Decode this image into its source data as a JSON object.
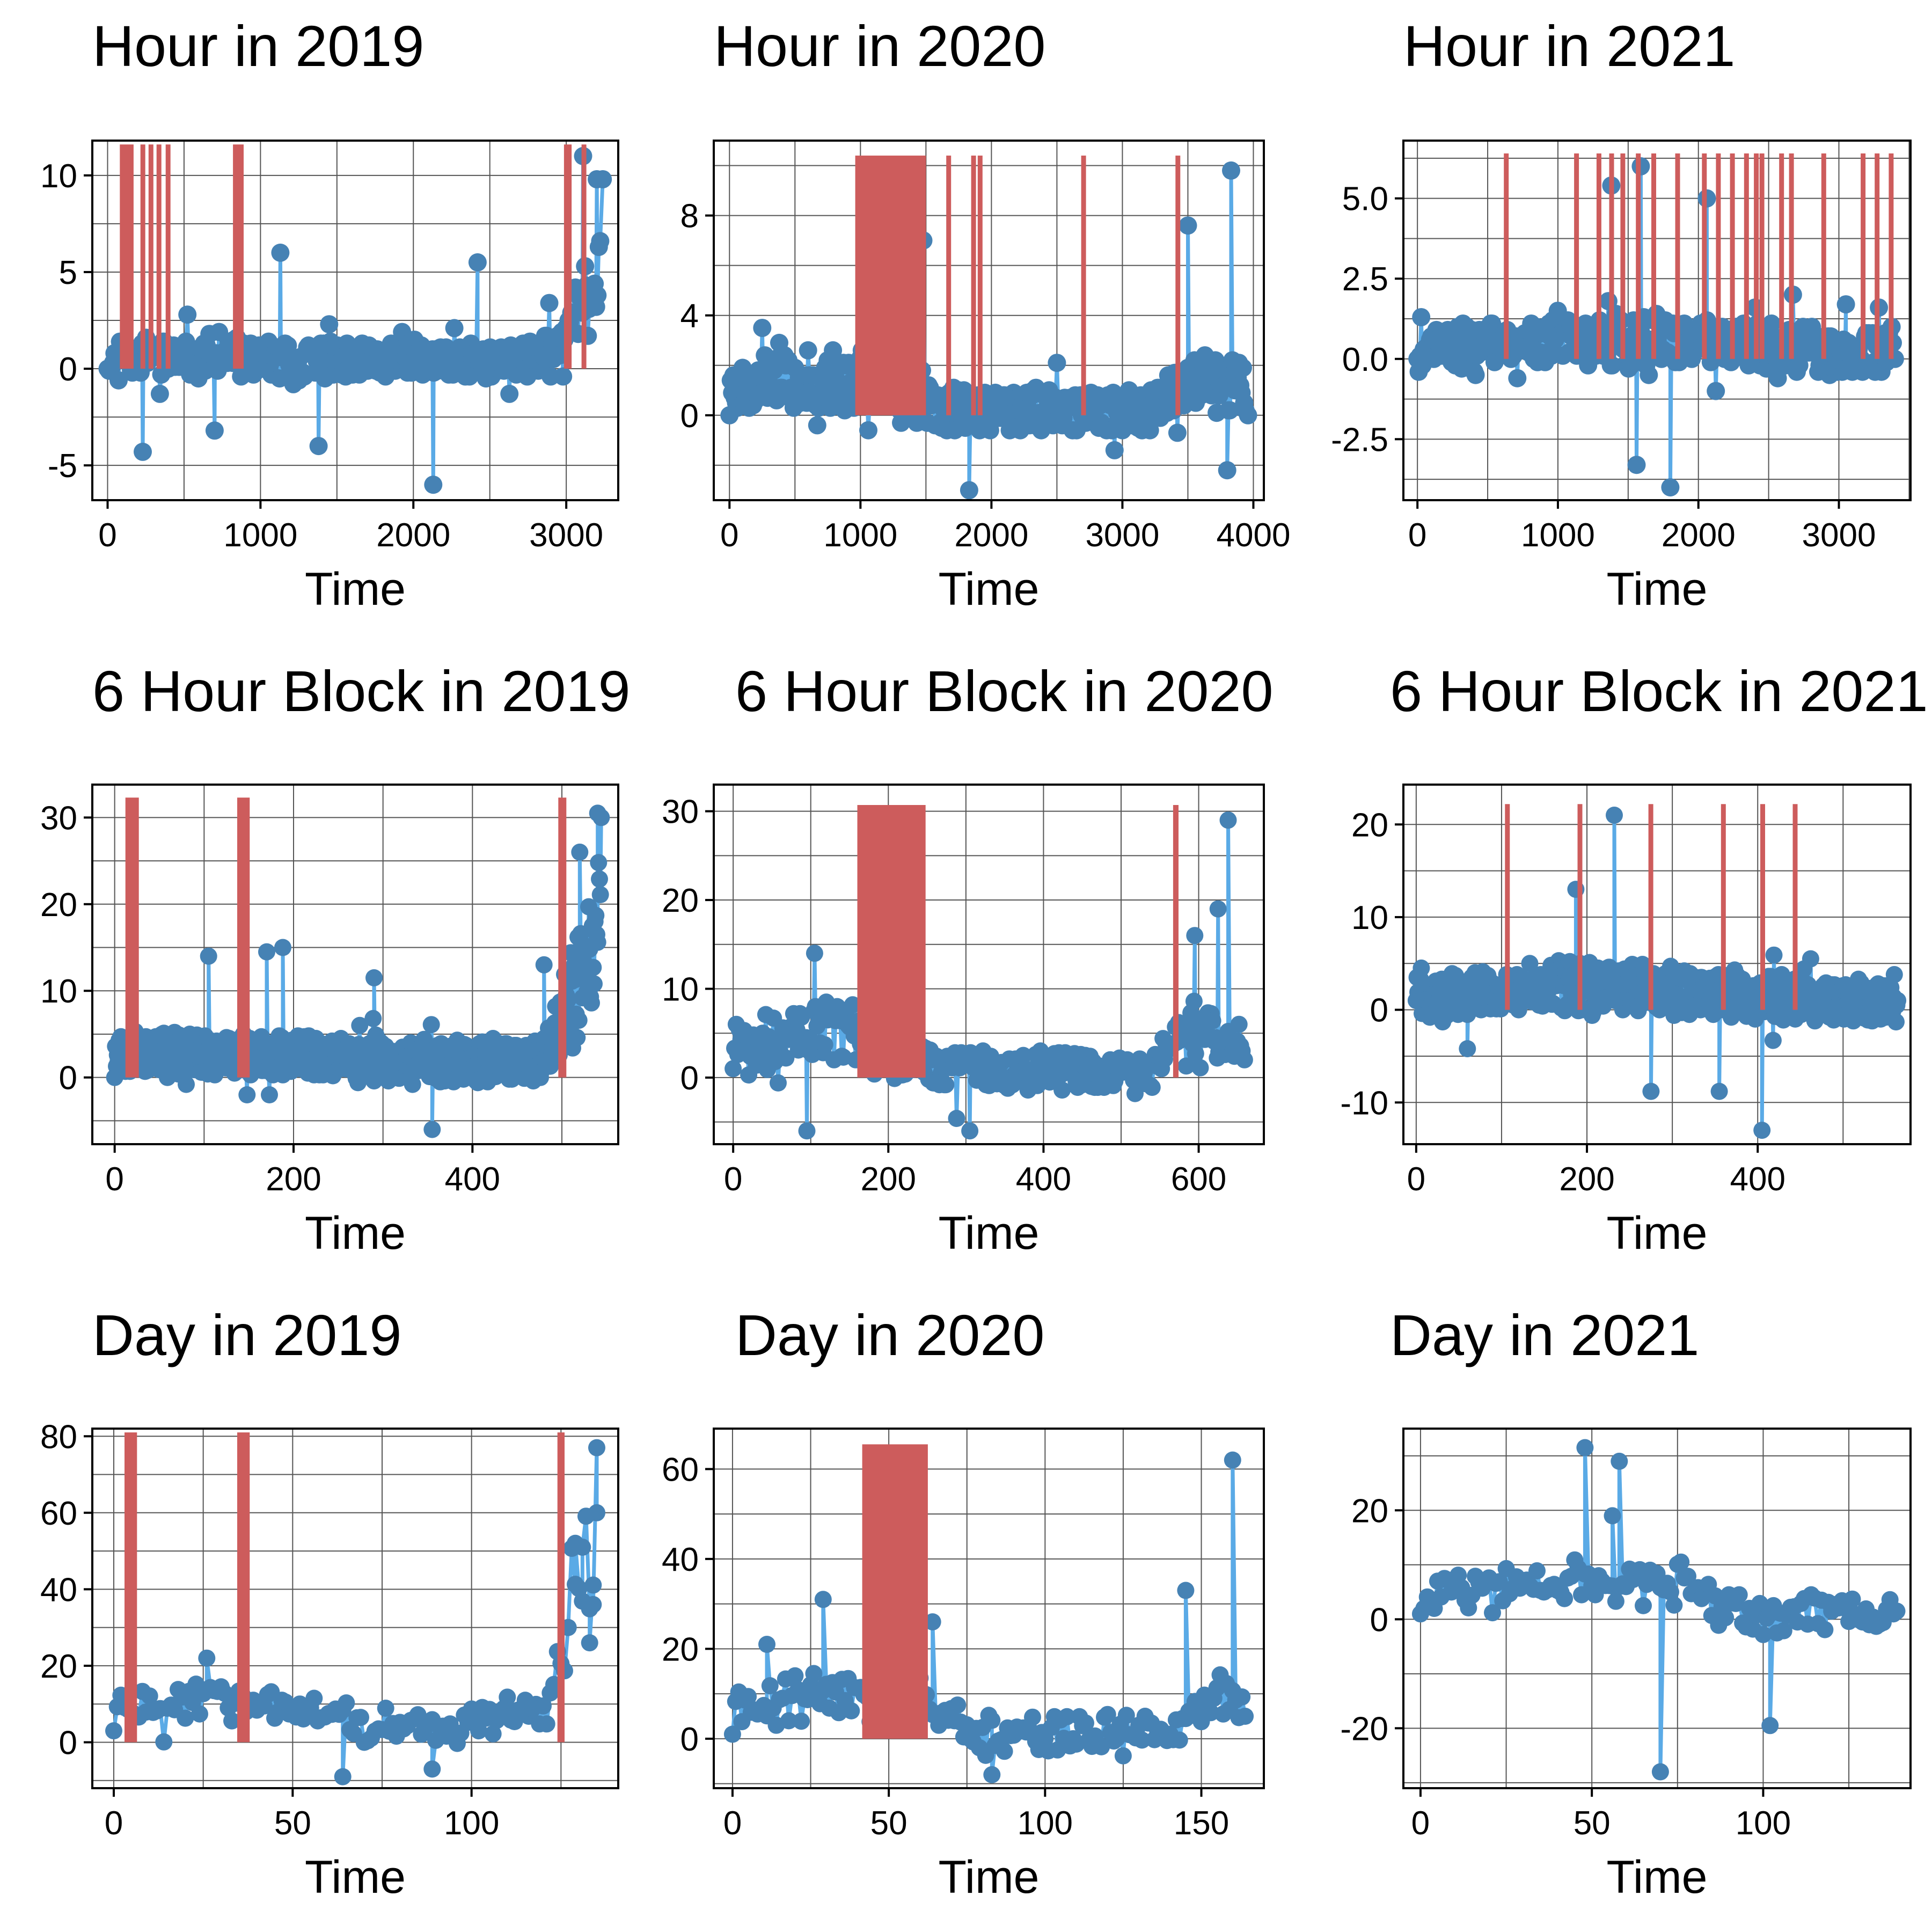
{
  "colors": {
    "series_line": "#5aaae6",
    "series_point": "#4682b4",
    "highlight": "#cd5c5c",
    "grid": "#555555",
    "frame": "#000000"
  },
  "chart_data": [
    {
      "type": "scatter",
      "title": "Hour in 2019",
      "xlabel": "Time",
      "ylabel": "",
      "xlim": [
        -100,
        3340
      ],
      "ylim": [
        -6.8,
        11.8
      ],
      "xticks": [
        0,
        1000,
        2000,
        3000
      ],
      "yticks": [
        -5,
        0,
        5,
        10
      ],
      "ytick_labels": [
        "-5",
        "0",
        "5",
        "10"
      ],
      "grid": true,
      "highlight_bars": [
        [
          80,
          170
        ],
        [
          215,
          240
        ],
        [
          268,
          290
        ],
        [
          320,
          340
        ],
        [
          380,
          400
        ],
        [
          820,
          890
        ],
        [
          2985,
          3035
        ],
        [
          3100,
          3125
        ]
      ],
      "highlight_ymax": 11.6,
      "series": [
        {
          "n": 3240,
          "max": 11,
          "min": -6,
          "start": 0,
          "end": 9.8,
          "base": 0.3,
          "spread": 1.5,
          "trend": [
            [
              0,
              0.6
            ],
            [
              600,
              0.8
            ],
            [
              1200,
              0.5
            ],
            [
              2000,
              0.4
            ],
            [
              2800,
              0.5
            ],
            [
              3000,
              2
            ],
            [
              3240,
              6
            ]
          ],
          "spikes": [
            [
              230,
              -4.3
            ],
            [
              700,
              -3.2
            ],
            [
              1130,
              6
            ],
            [
              1380,
              -4
            ],
            [
              2130,
              -6
            ],
            [
              2420,
              5.5
            ],
            [
              3110,
              11
            ],
            [
              3200,
              9.8
            ]
          ],
          "seed": 11
        }
      ]
    },
    {
      "type": "scatter",
      "title": "Hour in 2020",
      "xlabel": "Time",
      "ylabel": "",
      "xlim": [
        -120,
        4080
      ],
      "ylim": [
        -3.4,
        11
      ],
      "xticks": [
        0,
        1000,
        2000,
        3000,
        4000
      ],
      "yticks": [
        0,
        4,
        8
      ],
      "ytick_labels": [
        "0",
        "4",
        "8"
      ],
      "grid": true,
      "highlight_bars": [
        [
          960,
          1500
        ],
        [
          1655,
          1685
        ],
        [
          1845,
          1875
        ],
        [
          1895,
          1925
        ],
        [
          2685,
          2715
        ],
        [
          3405,
          3435
        ]
      ],
      "highlight_ymax": 10.4,
      "series": [
        {
          "n": 3960,
          "max": 9.8,
          "min": -3,
          "start": 0,
          "end": 0,
          "base": 0.3,
          "spread": 1.4,
          "trend": [
            [
              0,
              1.3
            ],
            [
              900,
              1.6
            ],
            [
              1600,
              0.2
            ],
            [
              3200,
              0.1
            ],
            [
              3500,
              1.5
            ],
            [
              3960,
              1.5
            ]
          ],
          "spikes": [
            [
              1480,
              7
            ],
            [
              1830,
              -3
            ],
            [
              3500,
              7.6
            ],
            [
              3830,
              9.8
            ],
            [
              3800,
              -2.2
            ]
          ],
          "seed": 23
        }
      ]
    },
    {
      "type": "scatter",
      "title": "Hour in 2021",
      "xlabel": "Time",
      "ylabel": "",
      "xlim": [
        -100,
        3510
      ],
      "ylim": [
        -4.4,
        6.8
      ],
      "xticks": [
        0,
        1000,
        2000,
        3000
      ],
      "yticks": [
        -2.5,
        0,
        2.5,
        5
      ],
      "ytick_labels": [
        "-2.5",
        "0.0",
        "2.5",
        "5.0"
      ],
      "grid": true,
      "highlight_bars": [
        [
          615,
          640
        ],
        [
          1115,
          1140
        ],
        [
          1275,
          1300
        ],
        [
          1365,
          1390
        ],
        [
          1445,
          1470
        ],
        [
          1555,
          1580
        ],
        [
          1665,
          1690
        ],
        [
          1835,
          1860
        ],
        [
          2025,
          2050
        ],
        [
          2125,
          2150
        ],
        [
          2225,
          2250
        ],
        [
          2325,
          2350
        ],
        [
          2395,
          2420
        ],
        [
          2435,
          2460
        ],
        [
          2575,
          2600
        ],
        [
          2645,
          2670
        ],
        [
          2875,
          2900
        ],
        [
          3155,
          3180
        ],
        [
          3255,
          3280
        ],
        [
          3355,
          3380
        ]
      ],
      "highlight_ymax": 6.4,
      "series": [
        {
          "n": 3400,
          "max": 6,
          "min": -4,
          "start": 0,
          "end": 0,
          "base": 0.1,
          "spread": 1.1,
          "trend": [
            [
              0,
              0.4
            ],
            [
              1500,
              0.7
            ],
            [
              2400,
              0.4
            ],
            [
              3400,
              0.2
            ]
          ],
          "spikes": [
            [
              1590,
              6
            ],
            [
              2060,
              5
            ],
            [
              1380,
              5.4
            ],
            [
              1800,
              -4
            ],
            [
              1560,
              -3.3
            ],
            [
              3050,
              1.7
            ]
          ],
          "seed": 37
        }
      ]
    },
    {
      "type": "scatter",
      "title": "6 Hour Block in 2019",
      "xlabel": "Time",
      "ylabel": "",
      "xlim": [
        -25,
        563
      ],
      "ylim": [
        -7.7,
        33.8
      ],
      "xticks": [
        0,
        200,
        400
      ],
      "yticks": [
        0,
        10,
        20,
        30
      ],
      "ytick_labels": [
        "0",
        "10",
        "20",
        "30"
      ],
      "grid": true,
      "highlight_bars": [
        [
          12,
          27
        ],
        [
          137,
          151
        ],
        [
          496,
          505
        ]
      ],
      "highlight_ymax": 32.3,
      "series": [
        {
          "n": 545,
          "max": 30.5,
          "min": -6,
          "start": 0,
          "end": 30,
          "base": 2.5,
          "spread": 4,
          "trend": [
            [
              0,
              3
            ],
            [
              200,
              2.5
            ],
            [
              300,
              1.5
            ],
            [
              480,
              2
            ],
            [
              510,
              10
            ],
            [
              545,
              20
            ]
          ],
          "spikes": [
            [
              105,
              14
            ],
            [
              170,
              14.5
            ],
            [
              188,
              15
            ],
            [
              290,
              11.5
            ],
            [
              355,
              -6
            ],
            [
              480,
              13
            ],
            [
              520,
              26
            ],
            [
              540,
              30.5
            ]
          ],
          "seed": 53
        }
      ]
    },
    {
      "type": "scatter",
      "title": "6 Hour Block in 2020",
      "xlabel": "Time",
      "ylabel": "",
      "xlim": [
        -25,
        684
      ],
      "ylim": [
        -7.5,
        33
      ],
      "xticks": [
        0,
        200,
        400,
        600
      ],
      "yticks": [
        0,
        10,
        20,
        30
      ],
      "ytick_labels": [
        "0",
        "10",
        "20",
        "30"
      ],
      "grid": true,
      "highlight_bars": [
        [
          160,
          248
        ],
        [
          567,
          574
        ]
      ],
      "highlight_ymax": 30.7,
      "series": [
        {
          "n": 660,
          "max": 29,
          "min": -6,
          "start": 1,
          "end": 2,
          "base": 0.5,
          "spread": 3.5,
          "trend": [
            [
              0,
              4
            ],
            [
              150,
              6
            ],
            [
              260,
              1
            ],
            [
              540,
              0.5
            ],
            [
              580,
              6
            ],
            [
              660,
              3
            ]
          ],
          "spikes": [
            [
              95,
              -6
            ],
            [
              105,
              14
            ],
            [
              305,
              -6
            ],
            [
              595,
              16
            ],
            [
              625,
              19
            ],
            [
              638,
              29
            ]
          ],
          "seed": 71
        }
      ]
    },
    {
      "type": "scatter",
      "title": "6 Hour Block in 2021",
      "xlabel": "Time",
      "ylabel": "",
      "xlim": [
        -15,
        579
      ],
      "ylim": [
        -14.5,
        24.3
      ],
      "xticks": [
        0,
        200,
        400
      ],
      "yticks": [
        -10,
        0,
        10,
        20
      ],
      "ytick_labels": [
        "-10",
        "0",
        "10",
        "20"
      ],
      "grid": true,
      "highlight_bars": [
        [
          104,
          109
        ],
        [
          189,
          194
        ],
        [
          272,
          277
        ],
        [
          357,
          362
        ],
        [
          403,
          408
        ],
        [
          441,
          446
        ]
      ],
      "highlight_ymax": 22.2,
      "series": [
        {
          "n": 565,
          "max": 21,
          "min": -13,
          "start": 1,
          "end": 1,
          "base": 0.5,
          "spread": 3.5,
          "trend": [
            [
              0,
              1.5
            ],
            [
              200,
              3
            ],
            [
              350,
              2
            ],
            [
              565,
              0.5
            ]
          ],
          "spikes": [
            [
              187,
              13
            ],
            [
              232,
              21
            ],
            [
              275,
              -8.8
            ],
            [
              355,
              -8.8
            ],
            [
              405,
              -13
            ],
            [
              60,
              -4.2
            ]
          ],
          "seed": 89
        }
      ]
    },
    {
      "type": "line",
      "title": "Day in 2019",
      "xlabel": "Time",
      "ylabel": "",
      "xlim": [
        -6,
        141
      ],
      "ylim": [
        -12,
        82
      ],
      "xticks": [
        0,
        50,
        100
      ],
      "yticks": [
        0,
        20,
        40,
        60,
        80
      ],
      "ytick_labels": [
        "0",
        "20",
        "40",
        "60",
        "80"
      ],
      "grid": true,
      "highlight_bars": [
        [
          3,
          6.5
        ],
        [
          34.5,
          38
        ],
        [
          124,
          126
        ]
      ],
      "highlight_ymax": 81,
      "series": [
        {
          "n": 136,
          "max": 77,
          "min": -9,
          "start": 3,
          "end": 77,
          "base": 8,
          "spread": 7,
          "trend": [
            [
              0,
              10
            ],
            [
              40,
              12
            ],
            [
              60,
              5
            ],
            [
              100,
              3
            ],
            [
              122,
              10
            ],
            [
              128,
              45
            ],
            [
              136,
              55
            ]
          ],
          "spikes": [
            [
              26,
              22
            ],
            [
              64,
              -9
            ],
            [
              89,
              -7
            ],
            [
              129,
              52
            ],
            [
              131,
              51
            ],
            [
              133,
              26
            ],
            [
              134,
              36
            ],
            [
              135,
              60
            ]
          ],
          "seed": 101
        }
      ]
    },
    {
      "type": "line",
      "title": "Day in 2020",
      "xlabel": "Time",
      "ylabel": "",
      "xlim": [
        -6,
        170
      ],
      "ylim": [
        -11,
        69
      ],
      "xticks": [
        0,
        50,
        100,
        150
      ],
      "yticks": [
        0,
        20,
        40,
        60
      ],
      "ytick_labels": [
        "0",
        "20",
        "40",
        "60"
      ],
      "grid": true,
      "highlight_bars": [
        [
          41.5,
          62.5
        ]
      ],
      "highlight_ymax": 65.5,
      "series": [
        {
          "n": 165,
          "max": 62,
          "min": -8,
          "start": 1,
          "end": 5,
          "base": 4,
          "spread": 6,
          "trend": [
            [
              0,
              8
            ],
            [
              40,
              12
            ],
            [
              64,
              8
            ],
            [
              80,
              0
            ],
            [
              140,
              2
            ],
            [
              160,
              12
            ],
            [
              165,
              5
            ]
          ],
          "spikes": [
            [
              29,
              31
            ],
            [
              11,
              21
            ],
            [
              64,
              26
            ],
            [
              83,
              -8
            ],
            [
              145,
              33
            ],
            [
              160,
              62
            ]
          ],
          "seed": 131
        }
      ]
    },
    {
      "type": "line",
      "title": "Day in 2021",
      "xlabel": "Time",
      "ylabel": "",
      "xlim": [
        -5,
        143
      ],
      "ylim": [
        -31,
        35
      ],
      "xticks": [
        0,
        50,
        100
      ],
      "yticks": [
        -20,
        0,
        20
      ],
      "ytick_labels": [
        "-20",
        "0",
        "20"
      ],
      "grid": true,
      "highlight_bars": [],
      "highlight_ymax": 0,
      "series": [
        {
          "n": 140,
          "max": 31.5,
          "min": -28,
          "start": 1,
          "end": 1.5,
          "base": 3,
          "spread": 5,
          "trend": [
            [
              0,
              4
            ],
            [
              40,
              7
            ],
            [
              75,
              8
            ],
            [
              95,
              0
            ],
            [
              140,
              2
            ]
          ],
          "spikes": [
            [
              48,
              31.5
            ],
            [
              58,
              29
            ],
            [
              70,
              -28
            ],
            [
              102,
              -19.5
            ],
            [
              56,
              19
            ]
          ],
          "seed": 151
        }
      ]
    }
  ]
}
